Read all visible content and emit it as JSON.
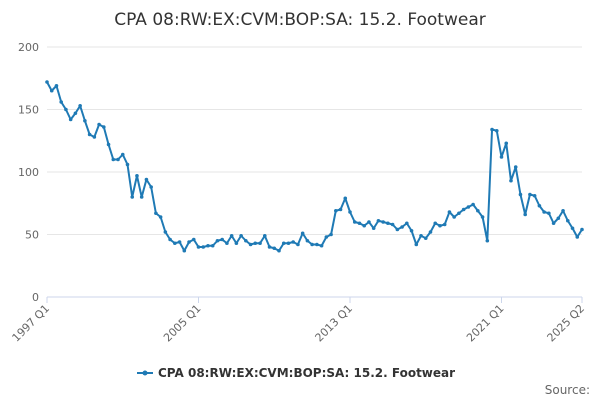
{
  "chart_data": {
    "type": "line",
    "title": "CPA 08:RW:EX:CVM:BOP:SA: 15.2. Footwear",
    "xlabel": "",
    "ylabel": "",
    "ylim": [
      0,
      200
    ],
    "y_ticks": [
      "0",
      "50",
      "100",
      "150",
      "200"
    ],
    "x_ticks": [
      "1997 Q1",
      "2005 Q1",
      "2013 Q1",
      "2021 Q1",
      "2025 Q2"
    ],
    "x_start_label": "1997 Q1",
    "x_end_label": "2025 Q2",
    "legend": "bottom-center",
    "grid": true,
    "color": "#1f7ab5",
    "series": [
      {
        "name": "CPA 08:RW:EX:CVM:BOP:SA: 15.2. Footwear",
        "values": [
          172,
          165,
          169,
          156,
          150,
          142,
          147,
          153,
          141,
          130,
          128,
          138,
          136,
          122,
          110,
          110,
          114,
          106,
          80,
          97,
          80,
          94,
          88,
          67,
          64,
          52,
          46,
          43,
          44,
          37,
          44,
          46,
          40,
          40,
          41,
          41,
          45,
          46,
          43,
          49,
          43,
          49,
          45,
          42,
          43,
          43,
          49,
          40,
          39,
          37,
          43,
          43,
          44,
          42,
          51,
          45,
          42,
          42,
          41,
          48,
          50,
          69,
          70,
          79,
          68,
          60,
          59,
          57,
          60,
          55,
          61,
          60,
          59,
          58,
          54,
          56,
          59,
          53,
          42,
          49,
          47,
          52,
          59,
          57,
          58,
          68,
          64,
          67,
          70,
          72,
          74,
          69,
          64,
          45,
          134,
          133,
          112,
          123,
          93,
          104,
          82,
          66,
          82,
          81,
          73,
          68,
          67,
          59,
          63,
          69,
          61,
          55,
          48,
          54
        ]
      }
    ]
  },
  "legend_label": "CPA 08:RW:EX:CVM:BOP:SA: 15.2. Footwear",
  "credits": "Source:"
}
